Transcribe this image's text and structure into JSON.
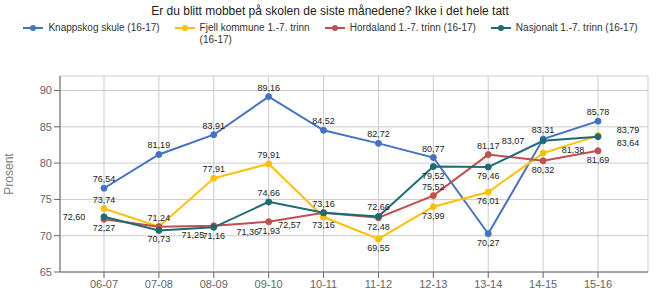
{
  "chart_data": {
    "type": "line",
    "title": "Er du blitt mobbet på skolen de siste månedene? Ikke i det hele tatt",
    "ylabel": "Prosent",
    "categories": [
      "06-07",
      "07-08",
      "08-09",
      "09-10",
      "10-11",
      "11-12",
      "12-13",
      "13-14",
      "14-15",
      "15-16"
    ],
    "series": [
      {
        "name": "Knappskog skule (16-17)",
        "color": "#4472C4",
        "values": [
          76.54,
          81.19,
          83.91,
          89.16,
          84.52,
          82.72,
          80.77,
          70.27,
          83.31,
          85.78
        ],
        "value_labels": [
          "76,54",
          "81,19",
          "83,91",
          "89,16",
          "84,52",
          "82,72",
          "80,77",
          "70,27",
          "83,31",
          "85,78"
        ]
      },
      {
        "name": "Fjell kommune 1.-7. trinn\n(16-17)",
        "color": "#FFC000",
        "values": [
          73.74,
          71.24,
          77.91,
          79.91,
          72.57,
          69.55,
          73.99,
          76.01,
          81.38,
          83.79
        ],
        "value_labels": [
          "73,74",
          "71,24",
          "77,91",
          "79,91",
          "72,57",
          "69,55",
          "73,99",
          "76,01",
          "81,38",
          "83,79"
        ]
      },
      {
        "name": "Hordaland 1.-7. trinn (16-17)",
        "color": "#C0504D",
        "values": [
          72.27,
          71.25,
          71.36,
          71.93,
          73.16,
          72.48,
          75.52,
          81.17,
          80.32,
          81.69
        ],
        "value_labels": [
          "72,27",
          "71,25",
          "71,36",
          "71,93",
          "73,16",
          "72,48",
          "75,52",
          "81,17",
          "80,32",
          "81,69"
        ]
      },
      {
        "name": "Nasjonalt 1.-7. trinn (16-17)",
        "color": "#1F6B75",
        "values": [
          72.6,
          70.73,
          71.16,
          74.66,
          73.16,
          72.66,
          79.52,
          79.46,
          83.07,
          83.64
        ],
        "value_labels": [
          "72,60",
          "70,73",
          "71,16",
          "74,66",
          "73,16",
          "72,66",
          "79,52",
          "79,46",
          "83,07",
          "83,64"
        ]
      }
    ],
    "ylim": [
      65,
      92
    ],
    "yticks": [
      65,
      70,
      75,
      80,
      85,
      90
    ],
    "grid": true,
    "legend": "top",
    "marker": "circle",
    "line_style": "solid",
    "data_labels": true
  }
}
